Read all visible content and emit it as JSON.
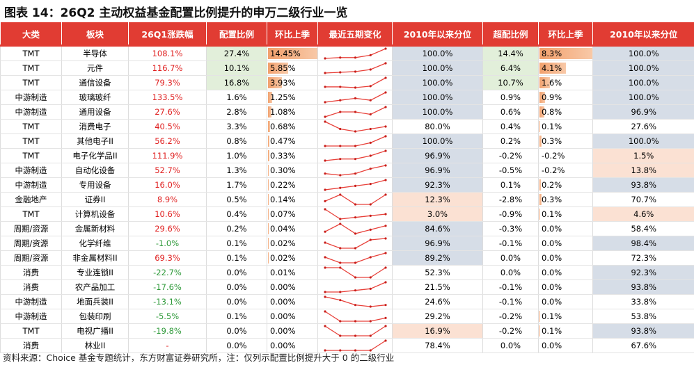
{
  "title": "图表 14：26Q2 主动权益基金配置比例提升的申万二级行业一览",
  "table": {
    "headers": [
      "大类",
      "板块",
      "26Q1涨跌幅",
      "配置比例",
      "环比上季",
      "最近五期变化",
      "2010年以来分位",
      "超配比例",
      "环比上季",
      "2010年以来分位"
    ],
    "rows": [
      [
        "TMT",
        "半导体",
        "108.1%",
        "27.4%",
        "14.45%",
        "100.0%",
        "14.4%",
        "8.3%",
        "100.0%"
      ],
      [
        "TMT",
        "元件",
        "116.7%",
        "10.1%",
        "5.85%",
        "100.0%",
        "6.4%",
        "4.1%",
        "100.0%"
      ],
      [
        "TMT",
        "通信设备",
        "79.3%",
        "16.8%",
        "3.93%",
        "100.0%",
        "10.7%",
        "1.6%",
        "100.0%"
      ],
      [
        "中游制造",
        "玻璃玻纤",
        "133.5%",
        "1.6%",
        "1.25%",
        "100.0%",
        "0.9%",
        "0.9%",
        "100.0%"
      ],
      [
        "中游制造",
        "通用设备",
        "27.6%",
        "2.8%",
        "1.08%",
        "100.0%",
        "0.6%",
        "0.8%",
        "96.9%"
      ],
      [
        "TMT",
        "消费电子",
        "40.5%",
        "3.3%",
        "0.68%",
        "80.0%",
        "0.4%",
        "0.1%",
        "27.6%"
      ],
      [
        "TMT",
        "其他电子II",
        "56.2%",
        "0.8%",
        "0.47%",
        "100.0%",
        "0.2%",
        "0.3%",
        "100.0%"
      ],
      [
        "TMT",
        "电子化学品II",
        "111.9%",
        "1.0%",
        "0.33%",
        "96.9%",
        "-0.2%",
        "-0.2%",
        "1.5%"
      ],
      [
        "中游制造",
        "自动化设备",
        "52.7%",
        "1.3%",
        "0.30%",
        "96.9%",
        "-0.5%",
        "-0.2%",
        "13.8%"
      ],
      [
        "中游制造",
        "专用设备",
        "16.0%",
        "1.7%",
        "0.22%",
        "92.3%",
        "0.1%",
        "0.2%",
        "93.8%"
      ],
      [
        "金融地产",
        "证券II",
        "8.9%",
        "0.5%",
        "0.14%",
        "12.3%",
        "-2.8%",
        "0.3%",
        "70.7%"
      ],
      [
        "TMT",
        "计算机设备",
        "10.6%",
        "0.4%",
        "0.07%",
        "3.0%",
        "-0.9%",
        "0.1%",
        "4.6%"
      ],
      [
        "周期/资源",
        "金属新材料",
        "29.6%",
        "0.2%",
        "0.04%",
        "84.6%",
        "-0.3%",
        "0.0%",
        "58.4%"
      ],
      [
        "周期/资源",
        "化学纤维",
        "-1.0%",
        "0.1%",
        "0.02%",
        "96.9%",
        "-0.1%",
        "0.0%",
        "98.4%"
      ],
      [
        "周期/资源",
        "非金属材料II",
        "69.3%",
        "0.1%",
        "0.02%",
        "89.2%",
        "0.0%",
        "0.0%",
        "72.3%"
      ],
      [
        "消费",
        "专业连锁II",
        "-22.7%",
        "0.0%",
        "0.01%",
        "52.3%",
        "0.0%",
        "0.0%",
        "92.3%"
      ],
      [
        "消费",
        "农产品加工",
        "-17.6%",
        "0.0%",
        "0.00%",
        "21.5%",
        "-0.1%",
        "0.0%",
        "93.8%"
      ],
      [
        "中游制造",
        "地面兵装II",
        "-13.1%",
        "0.0%",
        "0.00%",
        "24.6%",
        "-0.1%",
        "0.0%",
        "33.8%"
      ],
      [
        "中游制造",
        "包装印刷",
        "-5.5%",
        "0.1%",
        "0.00%",
        "29.2%",
        "-0.2%",
        "0.1%",
        "53.8%"
      ],
      [
        "TMT",
        "电视广播II",
        "-19.8%",
        "0.0%",
        "0.00%",
        "16.9%",
        "-0.2%",
        "0.1%",
        "93.8%"
      ],
      [
        "消费",
        "林业II",
        "-",
        "0.0%",
        "0.00%",
        "78.4%",
        "0.0%",
        "0.0%",
        "67.6%"
      ]
    ],
    "trends": [
      [
        3,
        3.5,
        3.5,
        5,
        9
      ],
      [
        2,
        2.5,
        3,
        4.5,
        9
      ],
      [
        3,
        3,
        2.5,
        3.5,
        9
      ],
      [
        4,
        5,
        6,
        5,
        9
      ],
      [
        3,
        5,
        5,
        4,
        7
      ],
      [
        8,
        5,
        4,
        5,
        6
      ],
      [
        3,
        3,
        3,
        4,
        6
      ],
      [
        2,
        3,
        3,
        5,
        8
      ],
      [
        3,
        2,
        3,
        6,
        8
      ],
      [
        2,
        3,
        4,
        5,
        7
      ],
      [
        4,
        6,
        3,
        3,
        6
      ],
      [
        8,
        2,
        3,
        4,
        5
      ],
      [
        3,
        7,
        2,
        4,
        6
      ],
      [
        6,
        2,
        2,
        8,
        9
      ],
      [
        6,
        2,
        2,
        6,
        9
      ],
      [
        3,
        3,
        2,
        2,
        3
      ],
      [
        2,
        2,
        3,
        4,
        8
      ],
      [
        8,
        6,
        3,
        2,
        3
      ],
      [
        5,
        2,
        2,
        2,
        3
      ],
      [
        3,
        2,
        2,
        2,
        3
      ],
      [
        2,
        2,
        2,
        2,
        3
      ]
    ]
  },
  "source": "资料来源：Choice 基金专题统计，东方财富证券研究所，注：仅列示配置比例提升大于 0 的二级行业"
}
